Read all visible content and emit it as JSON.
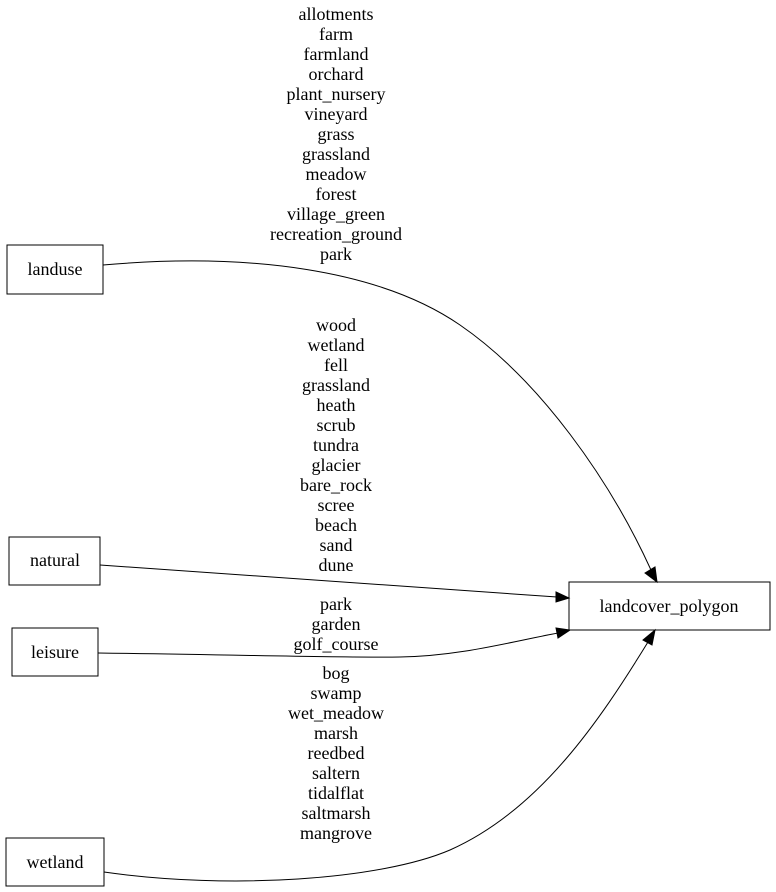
{
  "nodes": {
    "landuse": "landuse",
    "natural": "natural",
    "leisure": "leisure",
    "wetland": "wetland",
    "target": "landcover_polygon"
  },
  "edges": [
    {
      "from": "landuse",
      "labels": [
        "allotments",
        "farm",
        "farmland",
        "orchard",
        "plant_nursery",
        "vineyard",
        "grass",
        "grassland",
        "meadow",
        "forest",
        "village_green",
        "recreation_ground",
        "park"
      ]
    },
    {
      "from": "natural",
      "labels": [
        "wood",
        "wetland",
        "fell",
        "grassland",
        "heath",
        "scrub",
        "tundra",
        "glacier",
        "bare_rock",
        "scree",
        "beach",
        "sand",
        "dune"
      ]
    },
    {
      "from": "leisure",
      "labels": [
        "park",
        "garden",
        "golf_course"
      ]
    },
    {
      "from": "wetland",
      "labels": [
        "bog",
        "swamp",
        "wet_meadow",
        "marsh",
        "reedbed",
        "saltern",
        "tidalflat",
        "saltmarsh",
        "mangrove"
      ]
    }
  ]
}
